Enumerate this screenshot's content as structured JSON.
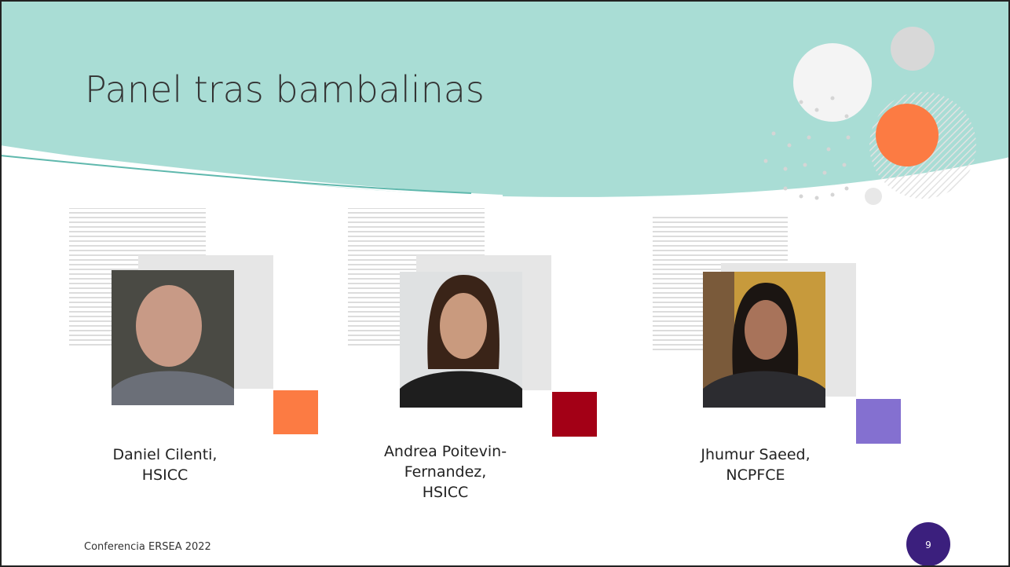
{
  "header": {
    "title": "Panel tras bambalinas"
  },
  "panelists": [
    {
      "lines": [
        "Daniel Cilenti,",
        "HSICC"
      ]
    },
    {
      "lines": [
        "Andrea Poitevin-",
        "Fernandez,",
        "HSICC"
      ]
    },
    {
      "lines": [
        "Jhumur Saeed,",
        "NCPFCE"
      ]
    }
  ],
  "footer": {
    "text": "Conferencia ERSEA 2022",
    "page_number": 9
  }
}
